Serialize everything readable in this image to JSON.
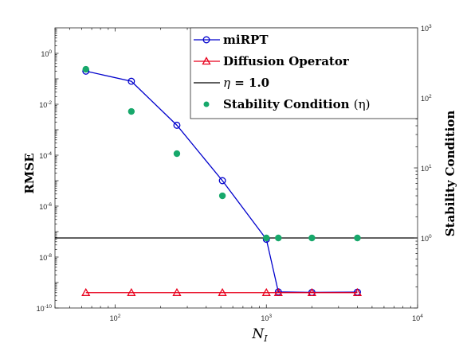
{
  "chart_data": {
    "type": "line",
    "x_label": "N",
    "x_label_sub": "I",
    "y_label_left": "RMSE",
    "y_label_right": "Stability Condition",
    "x_scale": "log",
    "y_scale_left": "log",
    "y_scale_right": "log",
    "xlim": [
      40,
      10000
    ],
    "ylim_left": [
      1e-10,
      10
    ],
    "ylim_right": [
      0.1,
      1000
    ],
    "x_ticks": [
      {
        "base": "10",
        "exp": "2",
        "value": 100
      },
      {
        "base": "10",
        "exp": "3",
        "value": 1000
      },
      {
        "base": "10",
        "exp": "4",
        "value": 10000
      }
    ],
    "y_ticks_left": [
      {
        "base": "10",
        "exp": "-10",
        "value": 1e-10
      },
      {
        "base": "10",
        "exp": "-8",
        "value": 1e-08
      },
      {
        "base": "10",
        "exp": "-6",
        "value": 1e-06
      },
      {
        "base": "10",
        "exp": "-4",
        "value": 0.0001
      },
      {
        "base": "10",
        "exp": "-2",
        "value": 0.01
      },
      {
        "base": "10",
        "exp": "0",
        "value": 1
      }
    ],
    "y_ticks_right": [
      {
        "base": "10",
        "exp": "0",
        "value": 1
      },
      {
        "base": "10",
        "exp": "1",
        "value": 10
      },
      {
        "base": "10",
        "exp": "2",
        "value": 100
      },
      {
        "base": "10",
        "exp": "3",
        "value": 1000
      }
    ],
    "series": [
      {
        "name": "miRPT",
        "axis": "left",
        "color": "#0000cc",
        "marker": "circle",
        "line": true,
        "x": [
          64,
          128,
          256,
          512,
          1000,
          1200,
          2000,
          4000
        ],
        "y": [
          0.2,
          0.08,
          0.0015,
          1e-05,
          5e-08,
          4.3e-10,
          4.1e-10,
          4.2e-10
        ]
      },
      {
        "name": "Diffusion Operator",
        "axis": "left",
        "color": "#e8001c",
        "marker": "triangle",
        "line": true,
        "x": [
          64,
          128,
          256,
          512,
          1000,
          1200,
          2000,
          4000
        ],
        "y": [
          4e-10,
          4e-10,
          4e-10,
          4e-10,
          4e-10,
          4e-10,
          4e-10,
          4e-10
        ]
      },
      {
        "name_prefix": "η",
        "name_suffix": " = 1.0",
        "axis": "right",
        "color": "#000000",
        "marker": "none",
        "line": true,
        "x": [
          40,
          10000
        ],
        "y": [
          1.0,
          1.0
        ]
      },
      {
        "name": "Stability Condition",
        "name_paren": "(η)",
        "axis": "right",
        "color": "#17a86b",
        "marker": "dot",
        "line": false,
        "x": [
          64,
          128,
          256,
          512,
          1000,
          1200,
          2000,
          4000
        ],
        "y": [
          256,
          64,
          16,
          4,
          1.0,
          1.0,
          1.0,
          1.0
        ]
      }
    ],
    "legend_position": "top-right"
  }
}
